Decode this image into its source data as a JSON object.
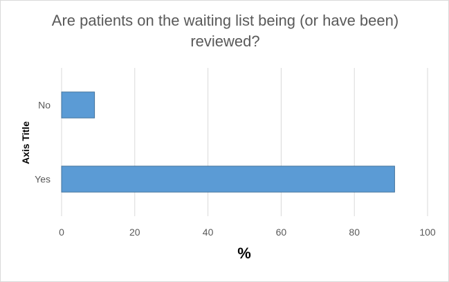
{
  "chart_data": {
    "type": "bar",
    "orientation": "horizontal",
    "title": "Are patients on the waiting list being (or have been) reviewed?",
    "xlabel": "%",
    "ylabel": "Axis Title",
    "categories": [
      "No",
      "Yes"
    ],
    "values": [
      9,
      91
    ],
    "xlim": [
      0,
      100
    ],
    "xticks": [
      0,
      20,
      40,
      60,
      80,
      100
    ],
    "grid": "vertical",
    "legend": "none",
    "bar_color": "#5b9bd5",
    "bar_edge_color": "#41719c",
    "grid_color": "#d9d9d9"
  }
}
